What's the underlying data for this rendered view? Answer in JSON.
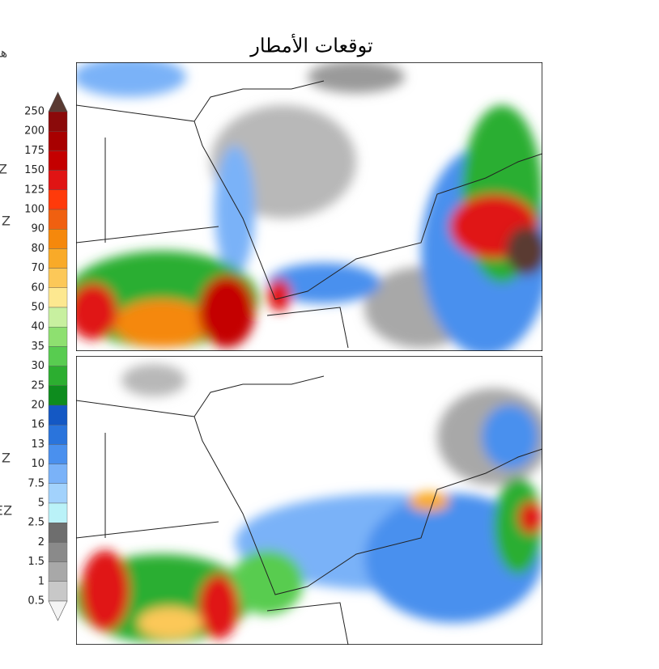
{
  "header": {
    "title": "توقعات الأمطار"
  },
  "side_texts": [
    "هـ",
    "Z",
    "Z",
    "Z",
    "ΞZ"
  ],
  "legend": {
    "labels": [
      "250",
      "200",
      "175",
      "150",
      "125",
      "100",
      "90",
      "80",
      "70",
      "60",
      "50",
      "40",
      "35",
      "30",
      "25",
      "20",
      "16",
      "13",
      "10",
      "7.5",
      "5",
      "2.5",
      "2",
      "1.5",
      "1",
      "0.5"
    ],
    "colors": [
      "#5a3a32",
      "#8b0a0a",
      "#a80000",
      "#c40000",
      "#e01414",
      "#ff3a0a",
      "#f06010",
      "#f5880c",
      "#f9aa28",
      "#fcc858",
      "#fde890",
      "#c8f0a0",
      "#8ee070",
      "#58cc50",
      "#2cae30",
      "#0e8c1e",
      "#1458c4",
      "#2a74dc",
      "#4a90ee",
      "#7ab2f8",
      "#a2d2fc",
      "#baf2f8",
      "#6e6e6e",
      "#8a8a8a",
      "#a8a8a8",
      "#c8c8c8",
      "#f4f4f4"
    ]
  }
}
